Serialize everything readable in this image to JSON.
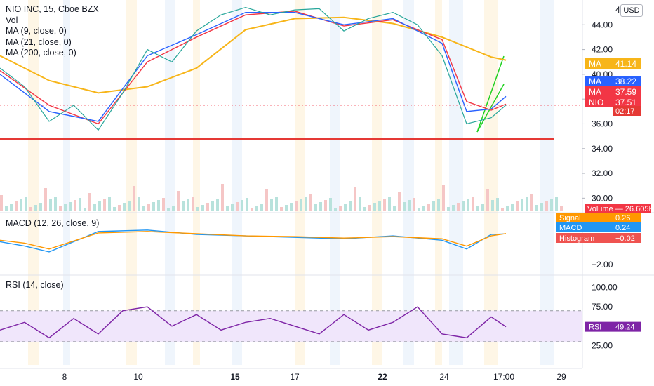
{
  "legend": {
    "symbol": "NIO INC, 15, Cboe BZX",
    "vol": "Vol",
    "ma9": "MA (9, close, 0)",
    "ma21": "MA (21, close, 0)",
    "ma200": "MA (200, close, 0)"
  },
  "macd_title": "MACD (12, 26, close, 9)",
  "rsi_title": "RSI (14, close)",
  "currency_button": "USD",
  "colors": {
    "ma200": "#f7b519",
    "ma9": "#2962ff",
    "ma21": "#f23645",
    "price": "#26a69a",
    "support_line": "#e53935",
    "trend_lines": "#22d122",
    "macd_line": "#2196f3",
    "signal_line": "#ff9800",
    "rsi_line": "#7e24a6",
    "rsi_band": "#f0e6fb"
  },
  "chart_data": [
    {
      "type": "line",
      "title": "NIO INC, 15, Cboe BZX",
      "x_tick_labels": [
        "8",
        "10",
        "15",
        "17",
        "22",
        "24",
        "17:00",
        "29"
      ],
      "y_tick_labels": [
        "44.00",
        "42.00",
        "40.00",
        "38.00",
        "36.00",
        "34.00",
        "32.00",
        "30.00"
      ],
      "ylim": [
        29,
        46
      ],
      "price_scale_top_label": "4",
      "support_level": 34.8,
      "series": [
        {
          "name": "NIO",
          "color": "#26a69a",
          "x": [
            0,
            5,
            10,
            15,
            20,
            25,
            30,
            35,
            40,
            45,
            50,
            55,
            60,
            65,
            70,
            75,
            80,
            85,
            90,
            95,
            100,
            103
          ],
          "values": [
            40.5,
            39,
            36.2,
            37.5,
            35.5,
            38.5,
            42,
            41,
            43.5,
            44.8,
            45.4,
            44.8,
            45.2,
            45.3,
            43.5,
            44.5,
            45,
            44,
            41.5,
            36,
            36.5,
            37.51
          ]
        },
        {
          "name": "MA",
          "color": "#2962ff",
          "x": [
            0,
            10,
            20,
            30,
            40,
            50,
            60,
            70,
            80,
            90,
            95,
            100,
            103
          ],
          "values": [
            40,
            37,
            36.2,
            41.5,
            43.2,
            45,
            45,
            44,
            44.5,
            42.5,
            37,
            37.2,
            38.22
          ]
        },
        {
          "name": "MA",
          "color": "#f23645",
          "x": [
            0,
            10,
            20,
            30,
            40,
            50,
            60,
            70,
            80,
            90,
            95,
            100,
            103
          ],
          "values": [
            40.3,
            37.5,
            36,
            41,
            43,
            44.8,
            45.1,
            43.9,
            44.4,
            42.8,
            37.8,
            37.1,
            37.59
          ]
        },
        {
          "name": "MA",
          "color": "#f7b519",
          "x": [
            0,
            10,
            20,
            30,
            40,
            50,
            60,
            70,
            80,
            90,
            100,
            103
          ],
          "values": [
            41.5,
            39.5,
            38.5,
            39,
            40.5,
            43.6,
            44.5,
            44.6,
            44.1,
            43,
            41.4,
            41.14
          ]
        }
      ],
      "price_labels": [
        {
          "name": "MA",
          "value": "41.14",
          "color": "#f7b519"
        },
        {
          "name": "MA",
          "value": "38.22",
          "color": "#2962ff"
        },
        {
          "name": "MA",
          "value": "37.59",
          "color": "#f23645"
        },
        {
          "name": "NIO",
          "value": "37.51",
          "color": "#f23645",
          "countdown": "02:17"
        }
      ],
      "volume": {
        "label": "Volume",
        "value": "26.605K",
        "color": "#f23645"
      }
    },
    {
      "type": "line",
      "title": "MACD (12, 26, close, 9)",
      "y_tick_labels": [
        "−2.00"
      ],
      "ylim": [
        -2.5,
        1.6
      ],
      "series": [
        {
          "name": "MACD",
          "color": "#2196f3",
          "x": [
            0,
            5,
            10,
            20,
            30,
            40,
            50,
            60,
            70,
            80,
            90,
            95,
            100,
            103
          ],
          "values": [
            -0.3,
            -0.6,
            -1,
            0.4,
            0.5,
            0.2,
            0.1,
            0,
            -0.1,
            0.1,
            -0.2,
            -0.8,
            0.2,
            0.24
          ]
        },
        {
          "name": "Signal",
          "color": "#ff9800",
          "x": [
            0,
            5,
            10,
            20,
            30,
            40,
            50,
            60,
            70,
            80,
            90,
            95,
            100,
            103
          ],
          "values": [
            -0.2,
            -0.4,
            -0.8,
            0.3,
            0.4,
            0.25,
            0.1,
            0.05,
            -0.05,
            0.05,
            -0.1,
            -0.6,
            0.1,
            0.26
          ]
        }
      ],
      "labels": [
        {
          "name": "Signal",
          "value": "0.26",
          "color": "#ff9800"
        },
        {
          "name": "MACD",
          "value": "0.24",
          "color": "#2196f3"
        },
        {
          "name": "Histogram",
          "value": "−0.02",
          "color": "#ef5350"
        }
      ]
    },
    {
      "type": "line",
      "title": "RSI (14, close)",
      "y_tick_labels": [
        "100.00",
        "75.00",
        "50.00",
        "25.00"
      ],
      "ylim": [
        0,
        115
      ],
      "band": [
        30,
        70
      ],
      "series": [
        {
          "name": "RSI",
          "color": "#7e24a6",
          "x": [
            0,
            5,
            10,
            15,
            20,
            25,
            30,
            35,
            40,
            45,
            50,
            55,
            60,
            65,
            70,
            75,
            80,
            85,
            90,
            95,
            100,
            103
          ],
          "values": [
            45,
            55,
            35,
            60,
            40,
            70,
            75,
            50,
            65,
            45,
            55,
            60,
            50,
            40,
            65,
            45,
            55,
            75,
            40,
            35,
            62,
            49.24
          ]
        }
      ],
      "labels": [
        {
          "name": "RSI",
          "value": "49.24",
          "color": "#7e24a6"
        }
      ]
    }
  ]
}
